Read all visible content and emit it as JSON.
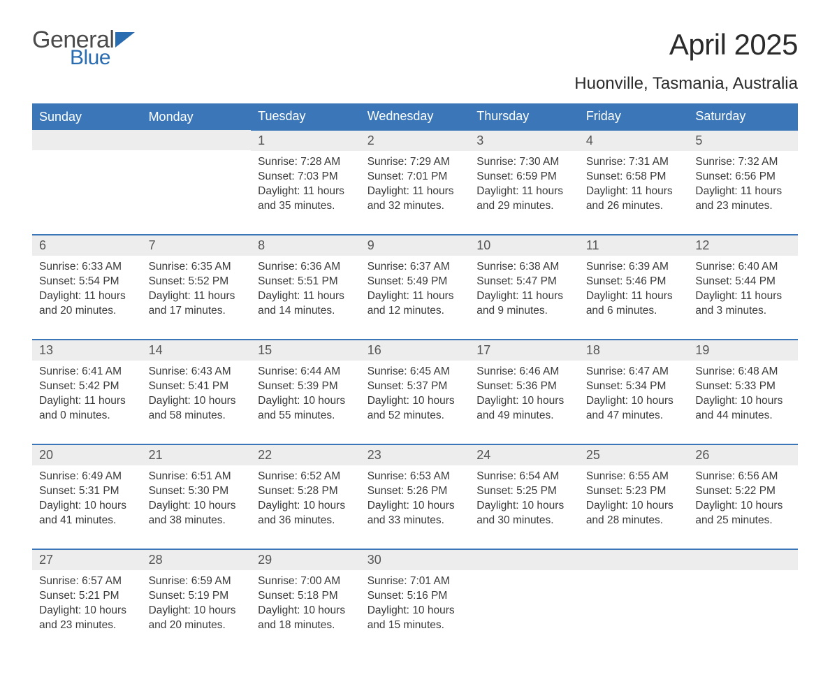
{
  "logo": {
    "word1": "General",
    "word2": "Blue",
    "word1_color": "#4a4a4a",
    "word2_color": "#2a6cb0",
    "flag_color": "#2a6cb0"
  },
  "title": "April 2025",
  "location": "Huonville, Tasmania, Australia",
  "colors": {
    "header_bg": "#3b77b8",
    "header_text": "#ffffff",
    "daynum_bg": "#ededed",
    "daynum_text": "#555555",
    "body_text": "#3a3a3a",
    "row_border": "#3b77b8",
    "page_bg": "#ffffff"
  },
  "typography": {
    "title_fontsize": 42,
    "location_fontsize": 24,
    "th_fontsize": 18,
    "daynum_fontsize": 18,
    "body_fontsize": 15.5
  },
  "day_headers": [
    "Sunday",
    "Monday",
    "Tuesday",
    "Wednesday",
    "Thursday",
    "Friday",
    "Saturday"
  ],
  "weeks": [
    [
      null,
      null,
      {
        "n": "1",
        "sunrise": "7:28 AM",
        "sunset": "7:03 PM",
        "daylight": "11 hours and 35 minutes."
      },
      {
        "n": "2",
        "sunrise": "7:29 AM",
        "sunset": "7:01 PM",
        "daylight": "11 hours and 32 minutes."
      },
      {
        "n": "3",
        "sunrise": "7:30 AM",
        "sunset": "6:59 PM",
        "daylight": "11 hours and 29 minutes."
      },
      {
        "n": "4",
        "sunrise": "7:31 AM",
        "sunset": "6:58 PM",
        "daylight": "11 hours and 26 minutes."
      },
      {
        "n": "5",
        "sunrise": "7:32 AM",
        "sunset": "6:56 PM",
        "daylight": "11 hours and 23 minutes."
      }
    ],
    [
      {
        "n": "6",
        "sunrise": "6:33 AM",
        "sunset": "5:54 PM",
        "daylight": "11 hours and 20 minutes."
      },
      {
        "n": "7",
        "sunrise": "6:35 AM",
        "sunset": "5:52 PM",
        "daylight": "11 hours and 17 minutes."
      },
      {
        "n": "8",
        "sunrise": "6:36 AM",
        "sunset": "5:51 PM",
        "daylight": "11 hours and 14 minutes."
      },
      {
        "n": "9",
        "sunrise": "6:37 AM",
        "sunset": "5:49 PM",
        "daylight": "11 hours and 12 minutes."
      },
      {
        "n": "10",
        "sunrise": "6:38 AM",
        "sunset": "5:47 PM",
        "daylight": "11 hours and 9 minutes."
      },
      {
        "n": "11",
        "sunrise": "6:39 AM",
        "sunset": "5:46 PM",
        "daylight": "11 hours and 6 minutes."
      },
      {
        "n": "12",
        "sunrise": "6:40 AM",
        "sunset": "5:44 PM",
        "daylight": "11 hours and 3 minutes."
      }
    ],
    [
      {
        "n": "13",
        "sunrise": "6:41 AM",
        "sunset": "5:42 PM",
        "daylight": "11 hours and 0 minutes."
      },
      {
        "n": "14",
        "sunrise": "6:43 AM",
        "sunset": "5:41 PM",
        "daylight": "10 hours and 58 minutes."
      },
      {
        "n": "15",
        "sunrise": "6:44 AM",
        "sunset": "5:39 PM",
        "daylight": "10 hours and 55 minutes."
      },
      {
        "n": "16",
        "sunrise": "6:45 AM",
        "sunset": "5:37 PM",
        "daylight": "10 hours and 52 minutes."
      },
      {
        "n": "17",
        "sunrise": "6:46 AM",
        "sunset": "5:36 PM",
        "daylight": "10 hours and 49 minutes."
      },
      {
        "n": "18",
        "sunrise": "6:47 AM",
        "sunset": "5:34 PM",
        "daylight": "10 hours and 47 minutes."
      },
      {
        "n": "19",
        "sunrise": "6:48 AM",
        "sunset": "5:33 PM",
        "daylight": "10 hours and 44 minutes."
      }
    ],
    [
      {
        "n": "20",
        "sunrise": "6:49 AM",
        "sunset": "5:31 PM",
        "daylight": "10 hours and 41 minutes."
      },
      {
        "n": "21",
        "sunrise": "6:51 AM",
        "sunset": "5:30 PM",
        "daylight": "10 hours and 38 minutes."
      },
      {
        "n": "22",
        "sunrise": "6:52 AM",
        "sunset": "5:28 PM",
        "daylight": "10 hours and 36 minutes."
      },
      {
        "n": "23",
        "sunrise": "6:53 AM",
        "sunset": "5:26 PM",
        "daylight": "10 hours and 33 minutes."
      },
      {
        "n": "24",
        "sunrise": "6:54 AM",
        "sunset": "5:25 PM",
        "daylight": "10 hours and 30 minutes."
      },
      {
        "n": "25",
        "sunrise": "6:55 AM",
        "sunset": "5:23 PM",
        "daylight": "10 hours and 28 minutes."
      },
      {
        "n": "26",
        "sunrise": "6:56 AM",
        "sunset": "5:22 PM",
        "daylight": "10 hours and 25 minutes."
      }
    ],
    [
      {
        "n": "27",
        "sunrise": "6:57 AM",
        "sunset": "5:21 PM",
        "daylight": "10 hours and 23 minutes."
      },
      {
        "n": "28",
        "sunrise": "6:59 AM",
        "sunset": "5:19 PM",
        "daylight": "10 hours and 20 minutes."
      },
      {
        "n": "29",
        "sunrise": "7:00 AM",
        "sunset": "5:18 PM",
        "daylight": "10 hours and 18 minutes."
      },
      {
        "n": "30",
        "sunrise": "7:01 AM",
        "sunset": "5:16 PM",
        "daylight": "10 hours and 15 minutes."
      },
      null,
      null,
      null
    ]
  ],
  "labels": {
    "sunrise": "Sunrise: ",
    "sunset": "Sunset: ",
    "daylight": "Daylight: "
  }
}
